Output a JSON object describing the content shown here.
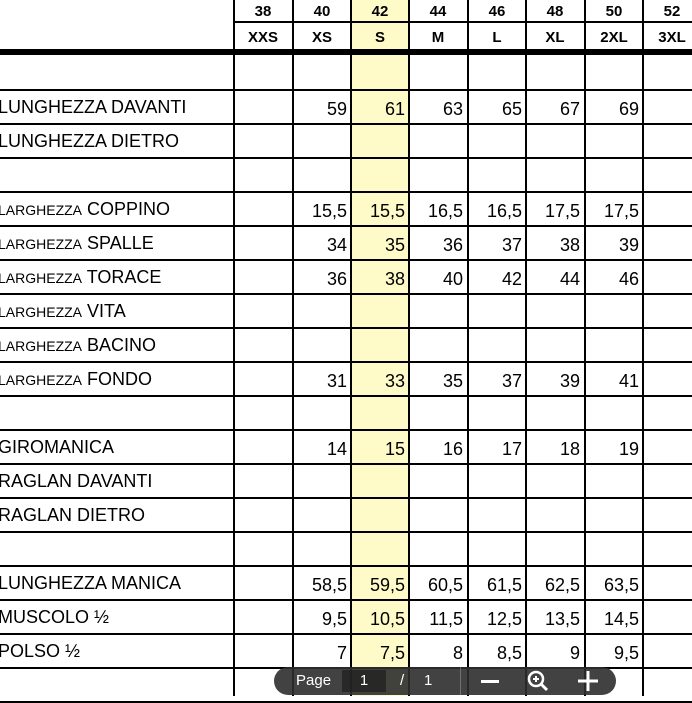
{
  "table": {
    "highlight_color": "#fffbc8",
    "sizes_it": [
      "38",
      "40",
      "42",
      "44",
      "46",
      "48",
      "50",
      "52"
    ],
    "sizes_intl": [
      "XXS",
      "XS",
      "S",
      "M",
      "L",
      "XL",
      "2XL",
      "3XL"
    ],
    "highlighted_column": "S",
    "rows": [
      {
        "prefix": "",
        "label": "",
        "values": [
          "",
          "",
          "",
          "",
          "",
          "",
          "",
          ""
        ]
      },
      {
        "prefix": "",
        "label": "LUNGHEZZA DAVANTI",
        "values": [
          "",
          "59",
          "61",
          "63",
          "65",
          "67",
          "69",
          ""
        ]
      },
      {
        "prefix": "",
        "label": "LUNGHEZZA DIETRO",
        "values": [
          "",
          "",
          "",
          "",
          "",
          "",
          "",
          ""
        ]
      },
      {
        "prefix": "",
        "label": "",
        "values": [
          "",
          "",
          "",
          "",
          "",
          "",
          "",
          ""
        ]
      },
      {
        "prefix": "LARGHEZZA",
        "label": "COPPINO",
        "values": [
          "",
          "15,5",
          "15,5",
          "16,5",
          "16,5",
          "17,5",
          "17,5",
          ""
        ]
      },
      {
        "prefix": "LARGHEZZA",
        "label": "SPALLE",
        "values": [
          "",
          "34",
          "35",
          "36",
          "37",
          "38",
          "39",
          ""
        ]
      },
      {
        "prefix": "LARGHEZZA",
        "label": "TORACE",
        "values": [
          "",
          "36",
          "38",
          "40",
          "42",
          "44",
          "46",
          ""
        ]
      },
      {
        "prefix": "LARGHEZZA",
        "label": "VITA",
        "values": [
          "",
          "",
          "",
          "",
          "",
          "",
          "",
          ""
        ]
      },
      {
        "prefix": "LARGHEZZA",
        "label": "BACINO",
        "values": [
          "",
          "",
          "",
          "",
          "",
          "",
          "",
          ""
        ]
      },
      {
        "prefix": "LARGHEZZA",
        "label": "FONDO",
        "values": [
          "",
          "31",
          "33",
          "35",
          "37",
          "39",
          "41",
          ""
        ]
      },
      {
        "prefix": "",
        "label": "",
        "values": [
          "",
          "",
          "",
          "",
          "",
          "",
          "",
          ""
        ]
      },
      {
        "prefix": "",
        "label": "GIROMANICA",
        "values": [
          "",
          "14",
          "15",
          "16",
          "17",
          "18",
          "19",
          ""
        ]
      },
      {
        "prefix": "",
        "label": "RAGLAN DAVANTI",
        "values": [
          "",
          "",
          "",
          "",
          "",
          "",
          "",
          ""
        ]
      },
      {
        "prefix": "",
        "label": "RAGLAN DIETRO",
        "values": [
          "",
          "",
          "",
          "",
          "",
          "",
          "",
          ""
        ]
      },
      {
        "prefix": "",
        "label": "",
        "values": [
          "",
          "",
          "",
          "",
          "",
          "",
          "",
          ""
        ]
      },
      {
        "prefix": "",
        "label": "LUNGHEZZA MANICA",
        "values": [
          "",
          "58,5",
          "59,5",
          "60,5",
          "61,5",
          "62,5",
          "63,5",
          ""
        ]
      },
      {
        "prefix": "",
        "label": "MUSCOLO ½",
        "values": [
          "",
          "9,5",
          "10,5",
          "11,5",
          "12,5",
          "13,5",
          "14,5",
          ""
        ]
      },
      {
        "prefix": "",
        "label": "POLSO ½",
        "values": [
          "",
          "7",
          "7,5",
          "8",
          "8,5",
          "9",
          "9,5",
          ""
        ]
      },
      {
        "prefix": "",
        "label": "",
        "values": [
          "",
          "",
          "",
          "",
          "",
          "",
          "",
          ""
        ]
      }
    ]
  },
  "toolbar": {
    "page_label": "Page",
    "current_page": "1",
    "separator": "/",
    "total_pages": "1",
    "zoom_out_icon": "minus-icon",
    "zoom_reset_icon": "magnifier-icon",
    "zoom_in_icon": "plus-icon"
  }
}
